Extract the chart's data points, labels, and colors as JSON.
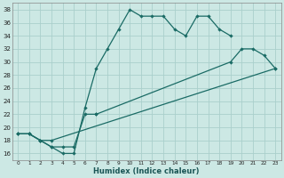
{
  "xlabel": "Humidex (Indice chaleur)",
  "bg_color": "#cce8e4",
  "grid_color": "#aacfcc",
  "line_color": "#1a6b65",
  "xlim": [
    -0.5,
    23.5
  ],
  "ylim": [
    15.0,
    39.0
  ],
  "yticks": [
    16,
    18,
    20,
    22,
    24,
    26,
    28,
    30,
    32,
    34,
    36,
    38
  ],
  "xticks": [
    0,
    1,
    2,
    3,
    4,
    5,
    6,
    7,
    8,
    9,
    10,
    11,
    12,
    13,
    14,
    15,
    16,
    17,
    18,
    19,
    20,
    21,
    22,
    23
  ],
  "line1_x": [
    0,
    1,
    2,
    3,
    4,
    5,
    6,
    7,
    8,
    9,
    10,
    11,
    12,
    13,
    14,
    15,
    16,
    17,
    18,
    19
  ],
  "line1_y": [
    19,
    19,
    18,
    17,
    16,
    16,
    23,
    29,
    32,
    35,
    38,
    37,
    37,
    37,
    35,
    34,
    37,
    37,
    35,
    34
  ],
  "line2_x": [
    0,
    1,
    2,
    3,
    4,
    5,
    6,
    7,
    19,
    20,
    21,
    22,
    23
  ],
  "line2_y": [
    19,
    19,
    18,
    17,
    17,
    17,
    22,
    22,
    30,
    32,
    32,
    31,
    29
  ],
  "line3_x": [
    0,
    1,
    2,
    3,
    23
  ],
  "line3_y": [
    19,
    19,
    18,
    18,
    29
  ]
}
